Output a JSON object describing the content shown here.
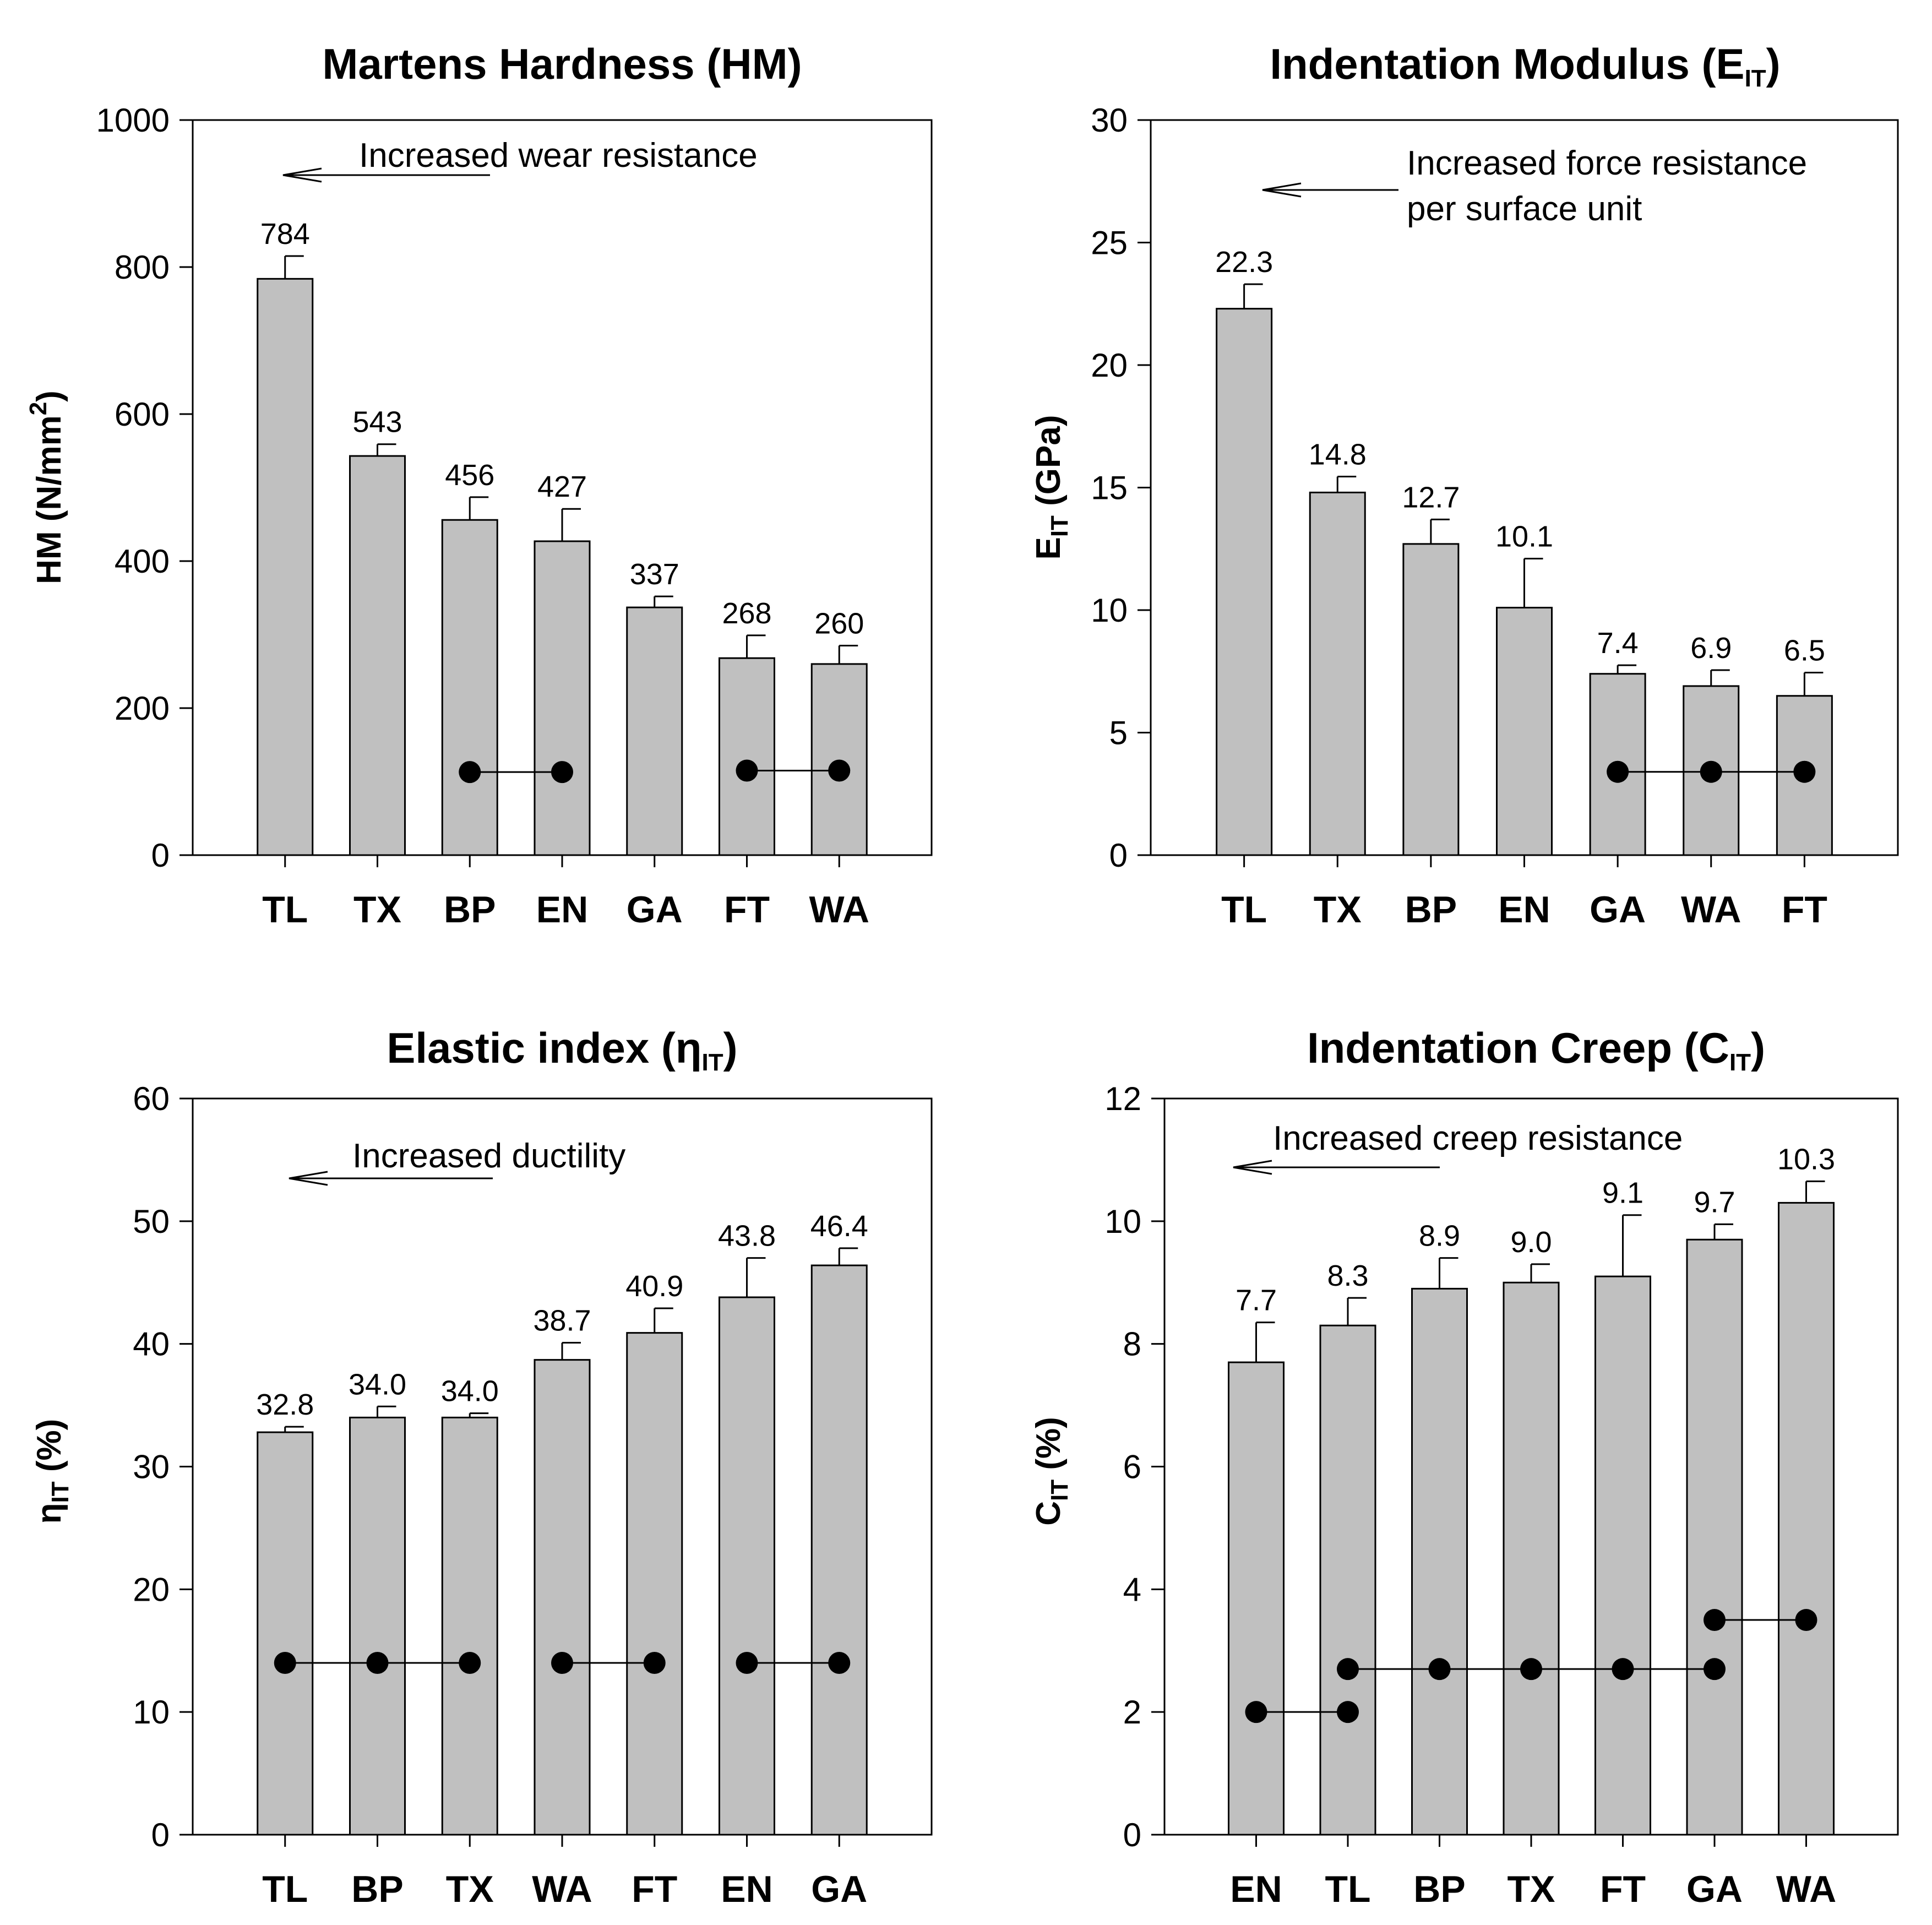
{
  "chart_data": [
    {
      "type": "bar",
      "title": "Martens Hardness (HM)",
      "ylabel": "HM (N/mm²)",
      "ylabel_main": "HM (N/mm",
      "ylabel_sup": "2",
      "ylabel_end": ")",
      "categories": [
        "TL",
        "TX",
        "BP",
        "EN",
        "GA",
        "FT",
        "WA"
      ],
      "values": [
        784,
        543,
        456,
        427,
        337,
        268,
        260
      ],
      "value_labels": [
        "784",
        "543",
        "456",
        "427",
        "337",
        "268",
        "260"
      ],
      "errors": [
        31,
        16,
        31,
        44,
        15,
        31,
        25
      ],
      "ylim": [
        0,
        1000
      ],
      "yticks": [
        0,
        200,
        400,
        600,
        800,
        1000
      ],
      "annotation": "Increased wear resistance",
      "groups": [
        {
          "from": 2,
          "to": 3,
          "y": 113
        },
        {
          "from": 5,
          "to": 6,
          "y": 115
        }
      ]
    },
    {
      "type": "bar",
      "title": "Indentation Modulus (E",
      "title_sub": "IT",
      "title_end": ")",
      "ylabel_main": "E",
      "ylabel_sub": "IT",
      "ylabel_end": " (GPa)",
      "categories": [
        "TL",
        "TX",
        "BP",
        "EN",
        "GA",
        "WA",
        "FT"
      ],
      "values": [
        22.3,
        14.8,
        12.7,
        10.1,
        7.4,
        6.9,
        6.5
      ],
      "value_labels": [
        "22.3",
        "14.8",
        "12.7",
        "10.1",
        "7.4",
        "6.9",
        "6.5"
      ],
      "errors": [
        1.0,
        0.65,
        1.0,
        2.0,
        0.35,
        0.65,
        0.95
      ],
      "ylim": [
        0,
        30
      ],
      "yticks": [
        0,
        5,
        10,
        15,
        20,
        25,
        30
      ],
      "annotation_lines": [
        "Increased force resistance",
        "per surface unit"
      ],
      "groups": [
        {
          "from": 4,
          "to": 6,
          "y": 3.4
        }
      ]
    },
    {
      "type": "bar",
      "title": "Elastic index (η",
      "title_sub": "IT",
      "title_end": ")",
      "ylabel_main": "η",
      "ylabel_sub": "IT",
      "ylabel_end": " (%)",
      "categories": [
        "TL",
        "BP",
        "TX",
        "WA",
        "FT",
        "EN",
        "GA"
      ],
      "values": [
        32.8,
        34.0,
        34.0,
        38.7,
        40.9,
        43.8,
        46.4
      ],
      "value_labels": [
        "32.8",
        "34.0",
        "34.0",
        "38.7",
        "40.9",
        "43.8",
        "46.4"
      ],
      "errors": [
        0.45,
        0.9,
        0.35,
        1.4,
        2.0,
        3.2,
        1.4
      ],
      "ylim": [
        0,
        60
      ],
      "yticks": [
        0,
        10,
        20,
        30,
        40,
        50,
        60
      ],
      "annotation": "Increased ductility",
      "groups": [
        {
          "from": 0,
          "to": 2,
          "y": 14
        },
        {
          "from": 3,
          "to": 4,
          "y": 14
        },
        {
          "from": 5,
          "to": 6,
          "y": 14
        }
      ]
    },
    {
      "type": "bar",
      "title": "Indentation Creep (C",
      "title_sub": "IT",
      "title_end": ")",
      "ylabel_main": "C",
      "ylabel_sub": "IT",
      "ylabel_end": " (%)",
      "categories": [
        "EN",
        "TL",
        "BP",
        "TX",
        "FT",
        "GA",
        "WA"
      ],
      "values": [
        7.7,
        8.3,
        8.9,
        9.0,
        9.1,
        9.7,
        10.3
      ],
      "value_labels": [
        "7.7",
        "8.3",
        "8.9",
        "9.0",
        "9.1",
        "9.7",
        "10.3"
      ],
      "errors": [
        0.65,
        0.45,
        0.5,
        0.3,
        1.0,
        0.25,
        0.35
      ],
      "ylim": [
        0,
        12
      ],
      "yticks": [
        0,
        2,
        4,
        6,
        8,
        10,
        12
      ],
      "annotation": "Increased creep resistance",
      "groups": [
        {
          "from": 0,
          "to": 1,
          "y": 2.0
        },
        {
          "from": 1,
          "to": 5,
          "y": 2.7
        },
        {
          "from": 5,
          "to": 6,
          "y": 3.5
        }
      ]
    }
  ]
}
